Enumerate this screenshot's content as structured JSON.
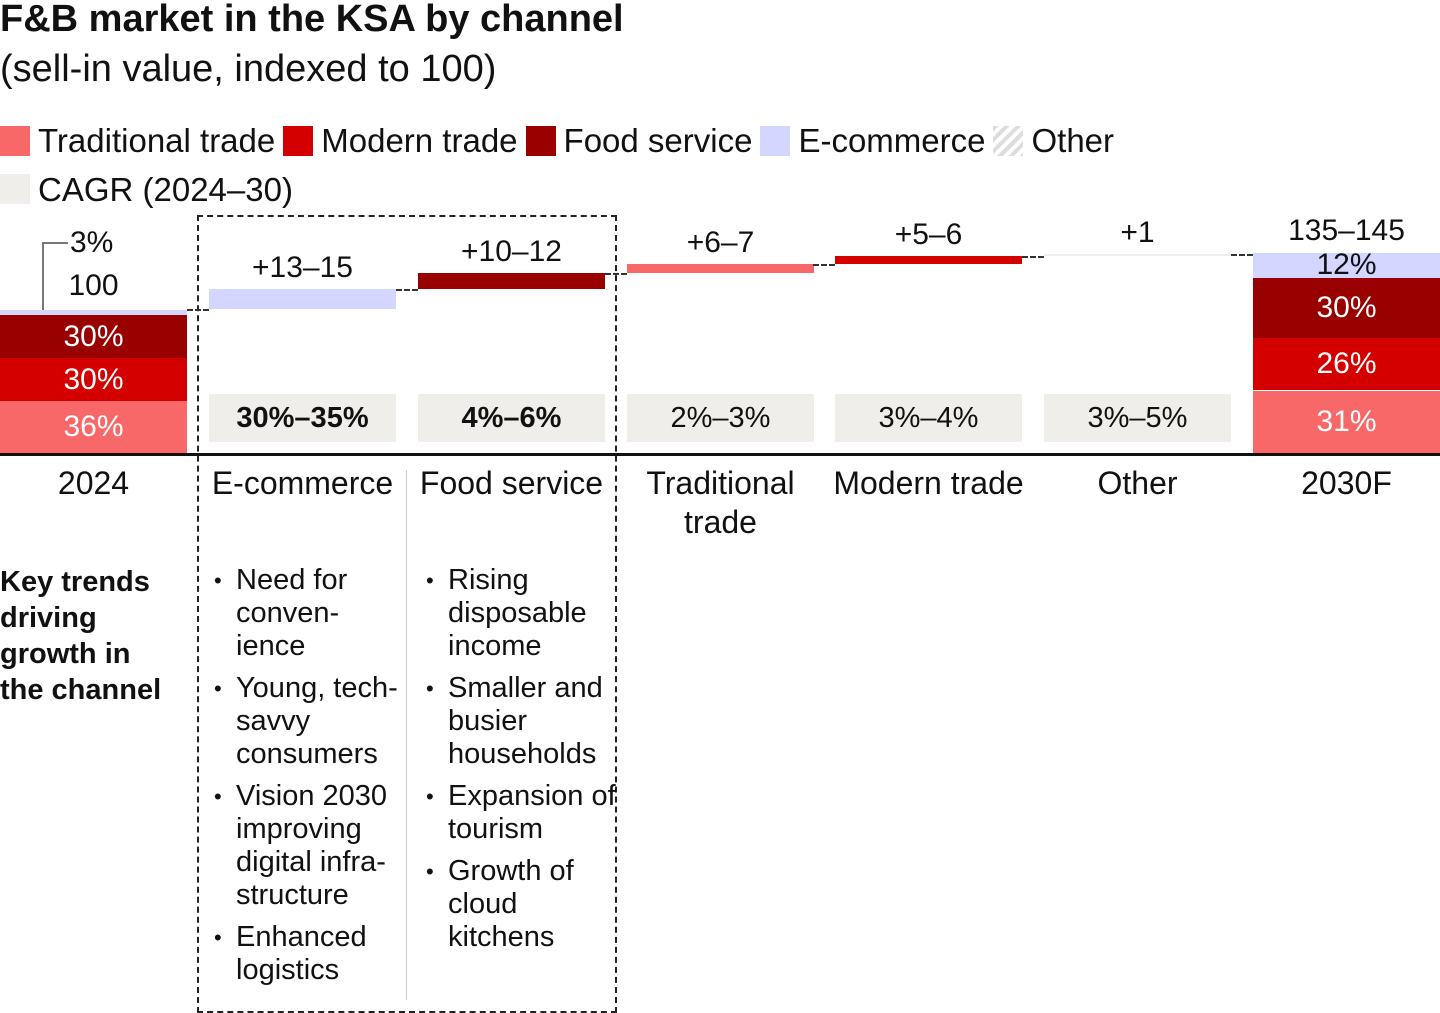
{
  "chart_data": {
    "type": "waterfall",
    "title": "F&B market in the KSA by channel",
    "subtitle": "(sell-in value, indexed to 100)",
    "legend": [
      {
        "name": "Traditional trade",
        "color": "#f86868"
      },
      {
        "name": "Modern trade",
        "color": "#d40000"
      },
      {
        "name": "Food service",
        "color": "#990000"
      },
      {
        "name": "E-commerce",
        "color": "#d4d6ff"
      },
      {
        "name": "Other",
        "color": "#e0e0e0",
        "pattern": "hatched"
      },
      {
        "name": "CAGR (2024–30)",
        "color": "#f0eeea"
      }
    ],
    "start": {
      "category": "2024",
      "total_label": "100",
      "total": 100,
      "shares": [
        {
          "series": "Traditional trade",
          "value": 36,
          "label": "36%"
        },
        {
          "series": "Modern trade",
          "value": 30,
          "label": "30%"
        },
        {
          "series": "Food service",
          "value": 30,
          "label": "30%"
        },
        {
          "series": "E-commerce",
          "value": 3,
          "label": "3%"
        }
      ]
    },
    "steps": [
      {
        "category": "E-commerce",
        "series": "E-commerce",
        "value": 14,
        "label": "+13–15",
        "cagr": "30%–35%",
        "cagr_bold": true
      },
      {
        "category": "Food service",
        "series": "Food service",
        "value": 11,
        "label": "+10–12",
        "cagr": "4%–6%",
        "cagr_bold": true
      },
      {
        "category": "Traditional trade",
        "series": "Traditional trade",
        "value": 6.5,
        "label": "+6–7",
        "cagr": "2%–3%"
      },
      {
        "category": "Modern trade",
        "series": "Modern trade",
        "value": 5.5,
        "label": "+5–6",
        "cagr": "3%–4%"
      },
      {
        "category": "Other",
        "series": "Other",
        "value": 1,
        "label": "+1",
        "cagr": "3%–5%"
      }
    ],
    "end": {
      "category": "2030F",
      "total_label": "135–145",
      "total": 140,
      "shares": [
        {
          "series": "Traditional trade",
          "value": 31,
          "label": "31%"
        },
        {
          "series": "Modern trade",
          "value": 26,
          "label": "26%"
        },
        {
          "series": "Food service",
          "value": 30,
          "label": "30%"
        },
        {
          "series": "E-commerce",
          "value": 12,
          "label": "12%"
        }
      ]
    }
  },
  "trends": {
    "heading": "Key trends driving growth in the channel",
    "ecommerce": [
      "Need for conven-ience",
      "Young, tech-savvy consumers",
      "Vision 2030 improving digital infra-structure",
      "Enhanced logistics"
    ],
    "food_service": [
      "Rising disposable income",
      "Smaller and busier households",
      "Expansion of tourism",
      "Growth of cloud kitchens"
    ]
  }
}
